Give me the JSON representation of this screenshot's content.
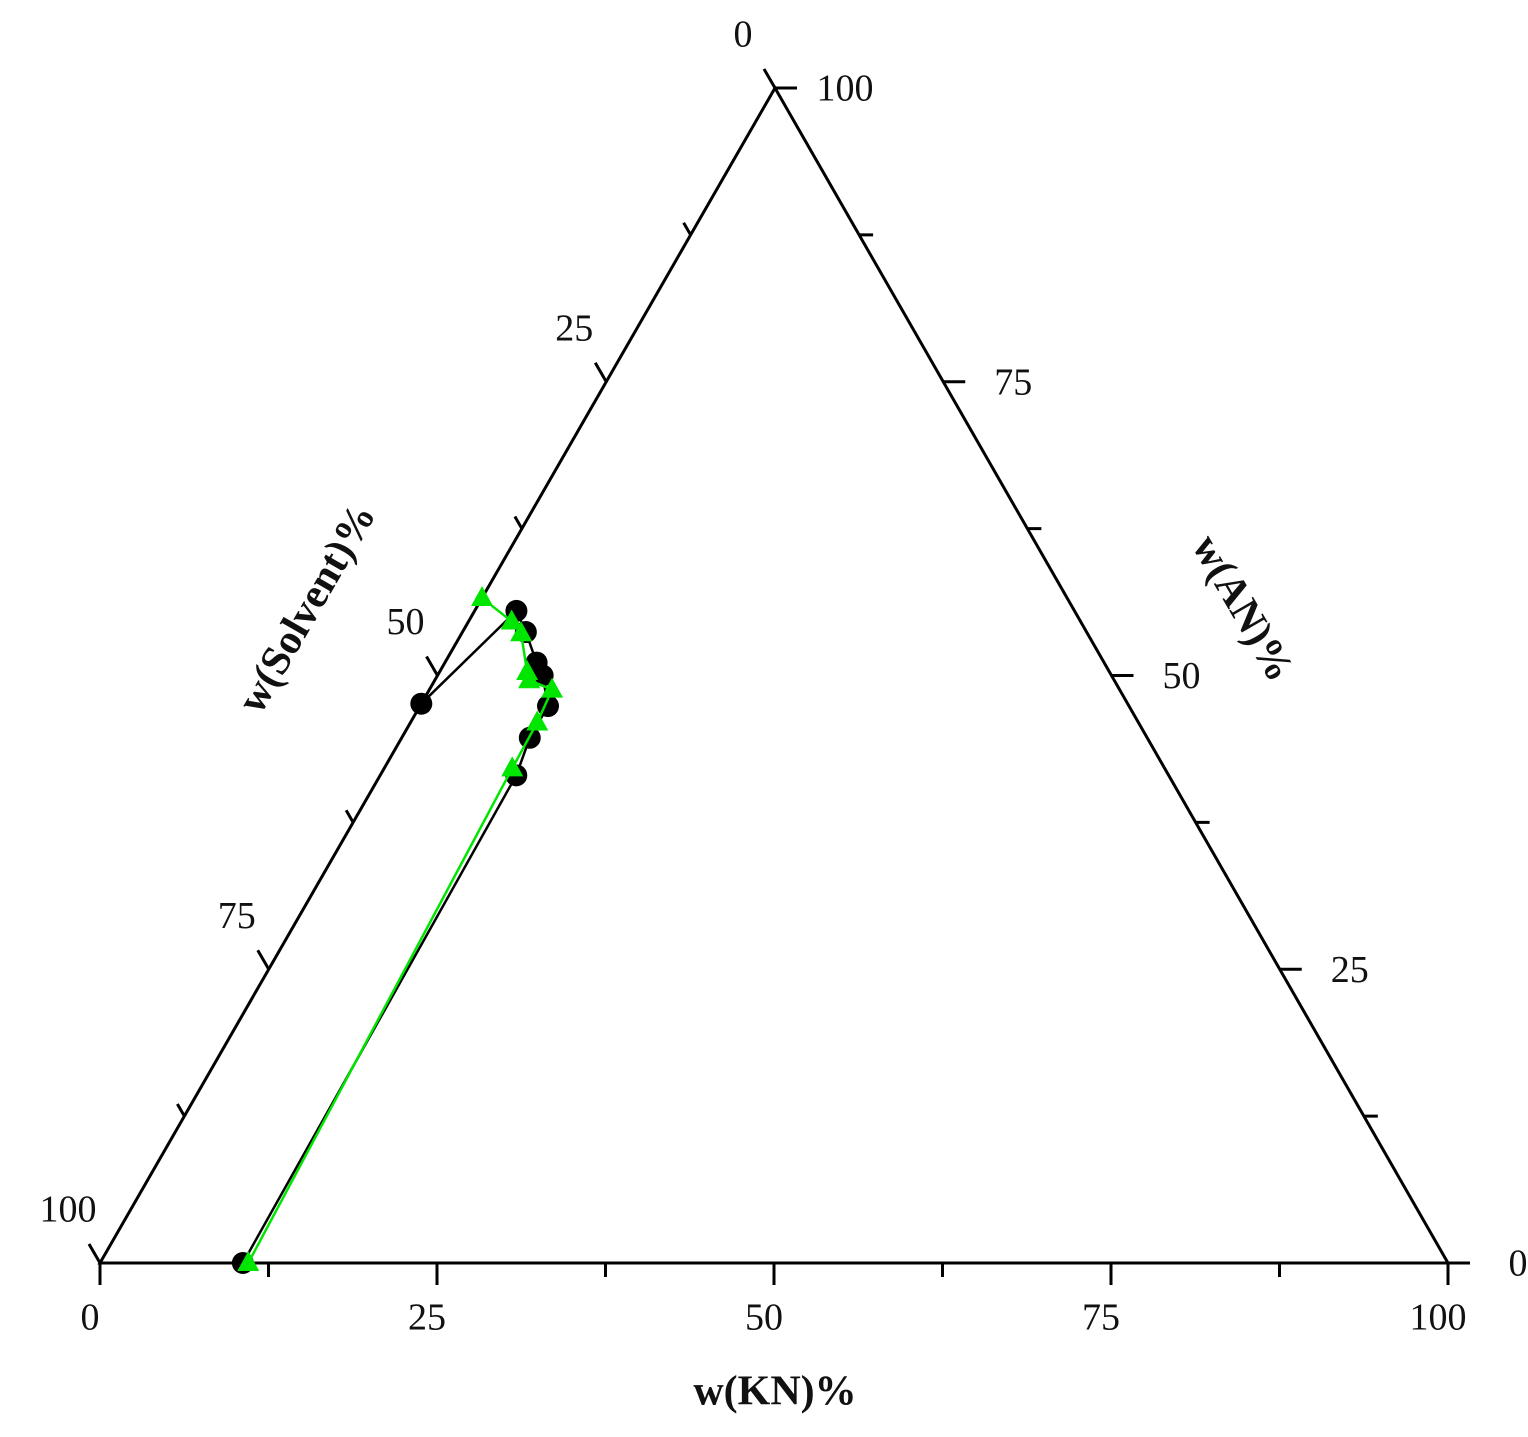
{
  "chart_data": {
    "type": "ternary",
    "axes": [
      {
        "side": "bottom",
        "title": "w(KN)%",
        "ticks": [
          0,
          25,
          50,
          75,
          100
        ],
        "minor_ticks": [
          12.5,
          37.5,
          62.5,
          87.5
        ]
      },
      {
        "side": "left",
        "title": "w(Solvent)%",
        "ticks": [
          0,
          25,
          50,
          75,
          100
        ],
        "minor_ticks": [
          12.5,
          37.5,
          62.5,
          87.5
        ]
      },
      {
        "side": "right",
        "title": "w(AN)%",
        "ticks": [
          0,
          25,
          50,
          75,
          100
        ],
        "minor_ticks": [
          12.5,
          37.5,
          62.5,
          87.5
        ]
      }
    ],
    "series": [
      {
        "color": "#000000",
        "marker": "circle",
        "kn": [
          10.6,
          10.1,
          9.5,
          9.5,
          7.8,
          6.8,
          4.7,
          3.1,
          0
        ],
        "an": [
          0,
          41.5,
          44.7,
          47.4,
          50.0,
          51.1,
          53.7,
          55.5,
          47.6
        ]
      },
      {
        "color": "#00e600",
        "marker": "triangle",
        "kn": [
          11.0,
          9.5,
          9.4,
          9.1,
          7.0,
          6.5,
          4.4,
          3.2,
          0
        ],
        "an": [
          0,
          42.1,
          46.0,
          48.8,
          49.6,
          50.3,
          53.6,
          54.6,
          56.6
        ]
      }
    ]
  }
}
